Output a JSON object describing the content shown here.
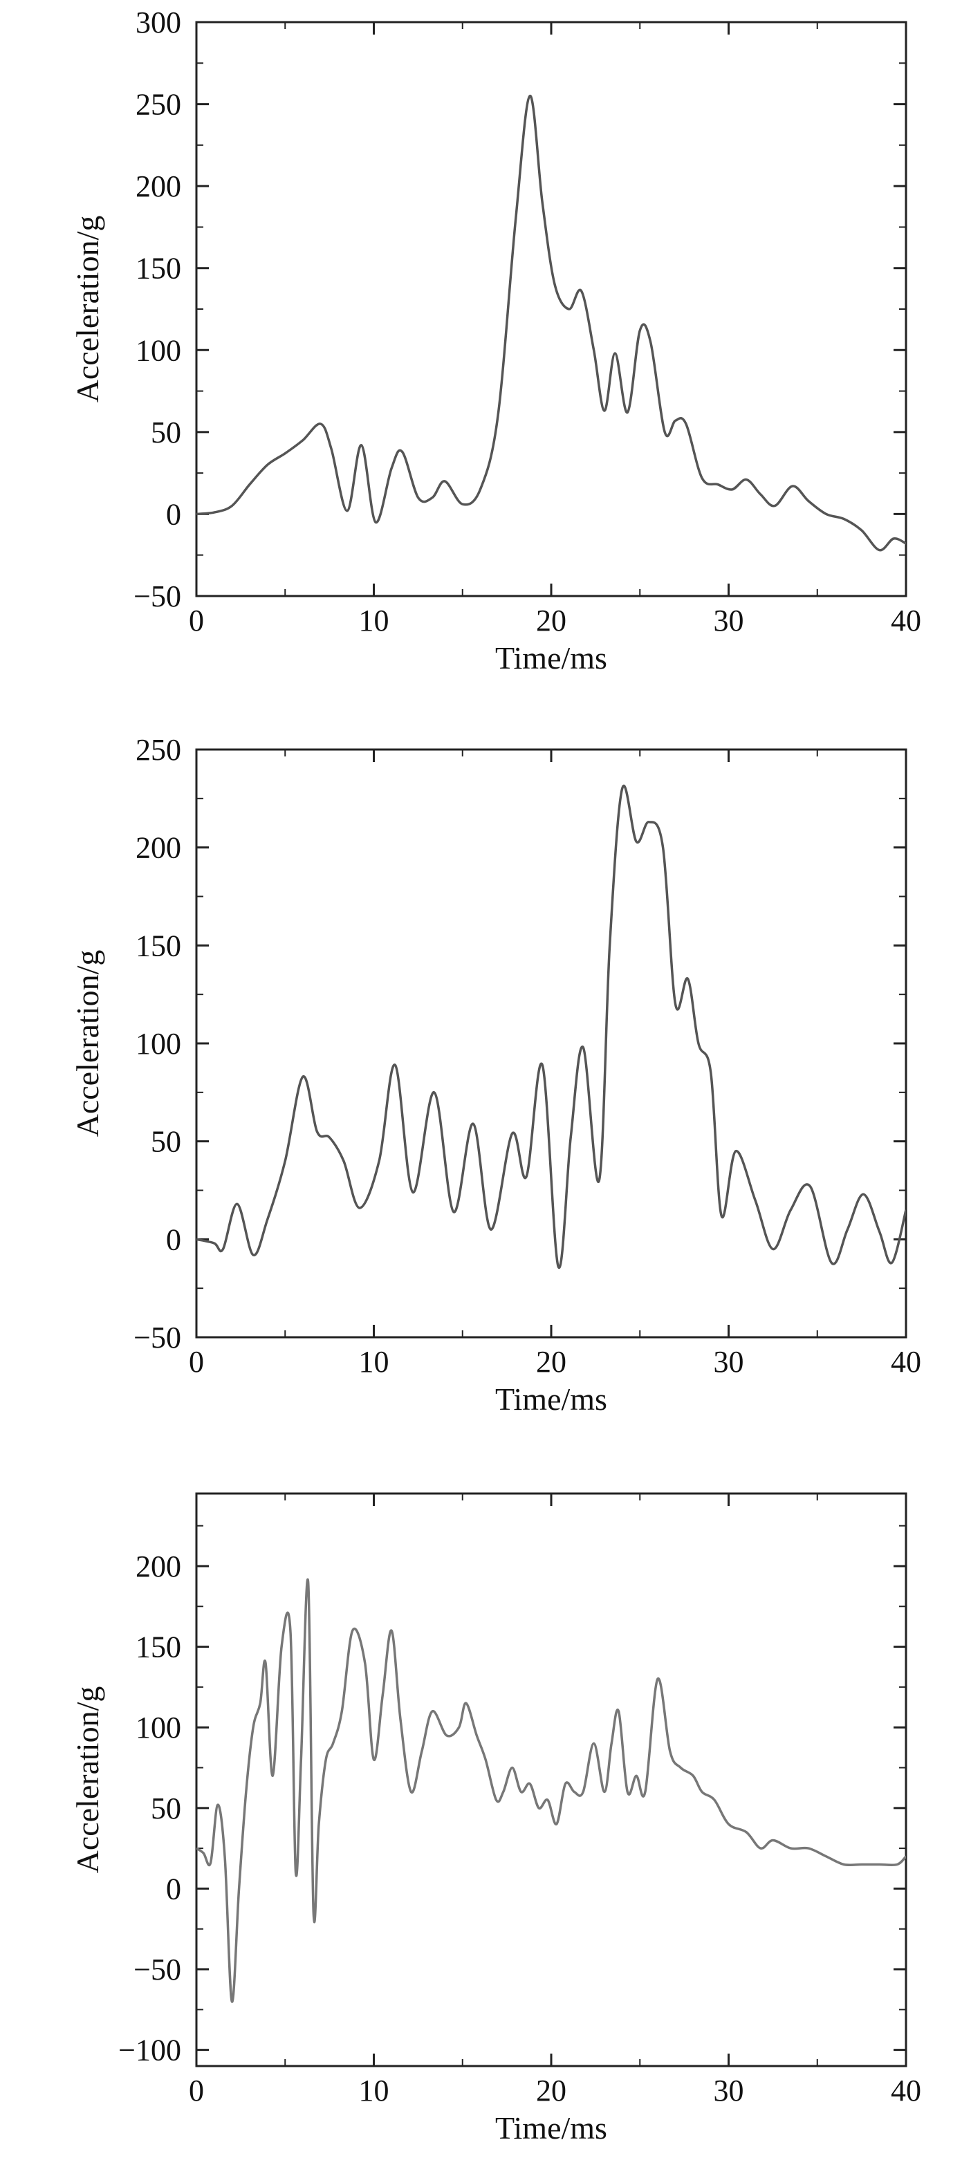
{
  "chart_data": [
    {
      "type": "line",
      "xlabel": "Time/ms",
      "ylabel": "Acceleration/g",
      "xlim": [
        0,
        40
      ],
      "ylim": [
        -50,
        300
      ],
      "xticks": [
        0,
        10,
        20,
        30,
        40
      ],
      "yticks": [
        -50,
        0,
        50,
        100,
        150,
        200,
        250,
        300
      ],
      "grid": false,
      "series": [
        {
          "color": "#555555",
          "x": [
            0,
            1,
            2,
            3,
            4,
            5,
            6,
            7,
            7.6,
            8.5,
            9.3,
            10.1,
            11,
            11.6,
            12.5,
            13.3,
            14,
            15,
            16,
            17,
            18,
            18.8,
            19.5,
            20.2,
            21,
            21.7,
            22.4,
            23,
            23.6,
            24.3,
            25,
            25.6,
            26.4,
            27,
            27.6,
            28.5,
            29.4,
            30.2,
            31,
            31.8,
            32.6,
            33.6,
            34.5,
            35.5,
            36.5,
            37.5,
            38.5,
            39.3,
            40
          ],
          "y": [
            0,
            1,
            5,
            18,
            30,
            37,
            45,
            55,
            40,
            2,
            42,
            -5,
            28,
            38,
            10,
            10,
            20,
            6,
            15,
            60,
            180,
            255,
            190,
            140,
            125,
            136,
            100,
            63,
            98,
            62,
            112,
            105,
            50,
            57,
            55,
            22,
            18,
            15,
            21,
            12,
            5,
            17,
            8,
            0,
            -3,
            -10,
            -22,
            -15,
            -18
          ]
        }
      ]
    },
    {
      "type": "line",
      "xlabel": "Time/ms",
      "ylabel": "Acceleration/g",
      "xlim": [
        0,
        40
      ],
      "ylim": [
        -50,
        250
      ],
      "xticks": [
        0,
        10,
        20,
        30,
        40
      ],
      "yticks": [
        -50,
        0,
        50,
        100,
        150,
        200,
        250
      ],
      "grid": false,
      "series": [
        {
          "color": "#555555",
          "x": [
            0,
            1,
            1.5,
            2.3,
            3.2,
            4,
            5,
            6,
            6.8,
            7.5,
            8.3,
            9.2,
            10.3,
            11.2,
            12.2,
            13.4,
            14.5,
            15.6,
            16.6,
            17.8,
            18.6,
            19.5,
            20.4,
            21.1,
            21.8,
            22.7,
            23.3,
            24,
            24.8,
            25.5,
            26.3,
            27,
            27.7,
            28.3,
            29,
            29.6,
            30.4,
            31.5,
            32.5,
            33.5,
            34.6,
            35.8,
            36.7,
            37.6,
            38.5,
            39.2,
            40
          ],
          "y": [
            0,
            -2,
            -5,
            18,
            -8,
            10,
            40,
            83,
            55,
            52,
            40,
            16,
            40,
            89,
            24,
            75,
            14,
            59,
            5,
            54,
            32,
            89,
            -14,
            52,
            98,
            30,
            150,
            230,
            203,
            213,
            200,
            120,
            133,
            100,
            85,
            12,
            45,
            20,
            -5,
            15,
            27,
            -12,
            5,
            23,
            4,
            -12,
            15
          ]
        }
      ]
    },
    {
      "type": "line",
      "xlabel": "Time/ms",
      "ylabel": "Acceleration/g",
      "xlim": [
        0,
        40
      ],
      "ylim": [
        -110,
        245
      ],
      "xticks": [
        0,
        10,
        20,
        30,
        40
      ],
      "yticks": [
        -100,
        -50,
        0,
        50,
        100,
        150,
        200
      ],
      "grid": false,
      "series": [
        {
          "color": "#777777",
          "x": [
            0,
            0.4,
            0.8,
            1.2,
            1.6,
            2,
            2.4,
            2.8,
            3.2,
            3.6,
            3.9,
            4.3,
            4.8,
            5.3,
            5.6,
            5.9,
            6.3,
            6.6,
            6.9,
            7.3,
            7.7,
            8.2,
            8.8,
            9.5,
            10,
            10.5,
            11,
            11.5,
            12.1,
            12.7,
            13.3,
            14.1,
            14.8,
            15.2,
            15.8,
            16.3,
            16.9,
            17.3,
            17.8,
            18.3,
            18.8,
            19.3,
            19.8,
            20.3,
            20.8,
            21.3,
            21.8,
            22.4,
            23,
            23.4,
            23.8,
            24.3,
            24.8,
            25.3,
            26,
            26.7,
            27.3,
            28,
            28.5,
            29.2,
            30,
            31,
            31.8,
            32.5,
            33.5,
            34.5,
            35.5,
            36.5,
            37.5,
            38.5,
            39.5,
            40
          ],
          "y": [
            25,
            22,
            16,
            52,
            20,
            -70,
            0,
            60,
            100,
            115,
            140,
            70,
            150,
            160,
            10,
            80,
            190,
            -15,
            40,
            80,
            90,
            110,
            160,
            140,
            80,
            120,
            160,
            105,
            60,
            85,
            110,
            95,
            100,
            115,
            95,
            80,
            55,
            60,
            75,
            60,
            65,
            50,
            55,
            40,
            65,
            60,
            60,
            90,
            60,
            90,
            110,
            60,
            70,
            60,
            130,
            85,
            75,
            70,
            60,
            55,
            40,
            35,
            25,
            30,
            25,
            25,
            20,
            15,
            15,
            15,
            15,
            20
          ]
        }
      ]
    }
  ]
}
